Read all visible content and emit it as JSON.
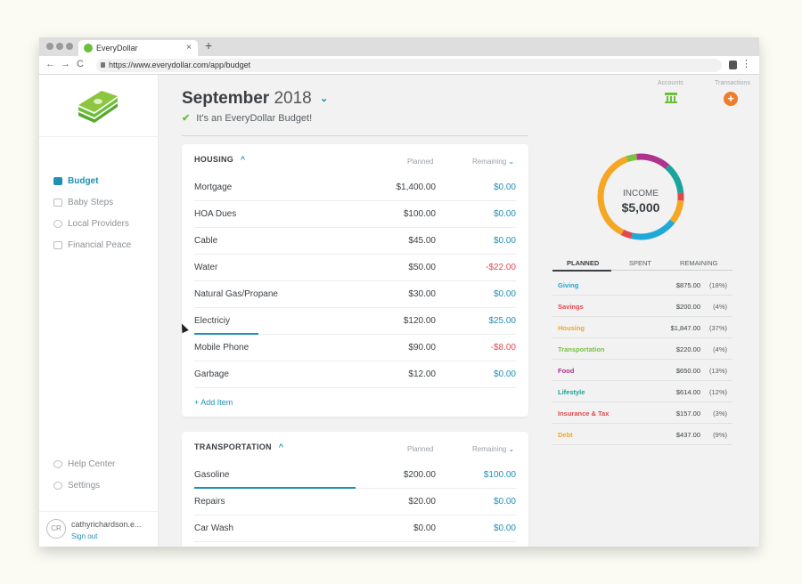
{
  "browser": {
    "tab_title": "EveryDollar",
    "tab_close": "×",
    "new_tab": "+",
    "back": "←",
    "forward": "→",
    "reload": "C",
    "url": "https://www.everydollar.com/app/budget",
    "menu": "⋮"
  },
  "sidebar": {
    "items": [
      {
        "label": "Budget",
        "icon": "folder-icon",
        "active": true
      },
      {
        "label": "Baby Steps",
        "icon": "cube-icon"
      },
      {
        "label": "Local Providers",
        "icon": "people-icon"
      },
      {
        "label": "Financial Peace",
        "icon": "book-icon"
      }
    ],
    "bottom_items": [
      {
        "label": "Help Center",
        "icon": "gear-icon"
      },
      {
        "label": "Settings",
        "icon": "gear-icon"
      }
    ],
    "user": {
      "initials": "CR",
      "name": "cathyrichardson.e...",
      "sign_out": "Sign out"
    }
  },
  "header": {
    "month": "September",
    "year": "2018",
    "chevron": "⌄",
    "checkmark": "✔",
    "subtitle": "It's an EveryDollar Budget!"
  },
  "top_actions": {
    "accounts_label": "Accounts",
    "transactions_label": "Transactions",
    "plus": "+"
  },
  "groups": [
    {
      "name": "HOUSING",
      "caret": "^",
      "planned_label": "Planned",
      "remaining_label": "Remaining",
      "remaining_chevron": "⌄",
      "items": [
        {
          "name": "Mortgage",
          "planned": "$1,400.00",
          "remaining": "$0.00",
          "negative": false,
          "progress": 0
        },
        {
          "name": "HOA Dues",
          "planned": "$100.00",
          "remaining": "$0.00",
          "negative": false,
          "progress": 0
        },
        {
          "name": "Cable",
          "planned": "$45.00",
          "remaining": "$0.00",
          "negative": false,
          "progress": 0
        },
        {
          "name": "Water",
          "planned": "$50.00",
          "remaining": "-$22.00",
          "negative": true,
          "progress": 0
        },
        {
          "name": "Natural Gas/Propane",
          "planned": "$30.00",
          "remaining": "$0.00",
          "negative": false,
          "progress": 0
        },
        {
          "name": "Electriciy",
          "planned": "$120.00",
          "remaining": "$25.00",
          "negative": false,
          "progress": 0.2
        },
        {
          "name": "Mobile Phone",
          "planned": "$90.00",
          "remaining": "-$8.00",
          "negative": true,
          "progress": 0
        },
        {
          "name": "Garbage",
          "planned": "$12.00",
          "remaining": "$0.00",
          "negative": false,
          "progress": 0
        }
      ],
      "add_item": "+ Add Item"
    },
    {
      "name": "TRANSPORTATION",
      "caret": "^",
      "planned_label": "Planned",
      "remaining_label": "Remaining",
      "remaining_chevron": "⌄",
      "items": [
        {
          "name": "Gasoline",
          "planned": "$200.00",
          "remaining": "$100.00",
          "negative": false,
          "progress": 0.5
        },
        {
          "name": "Repairs",
          "planned": "$20.00",
          "remaining": "$0.00",
          "negative": false,
          "progress": 0
        },
        {
          "name": "Car Wash",
          "planned": "$0.00",
          "remaining": "$0.00",
          "negative": false,
          "progress": 0
        }
      ]
    }
  ],
  "income": {
    "label": "INCOME",
    "value": "$5,000"
  },
  "summary_tabs": [
    "PLANNED",
    "SPENT",
    "REMAINING"
  ],
  "summary": [
    {
      "name": "Giving",
      "amount": "$875.00",
      "percent": "(18%)",
      "color": "#1fa9d8"
    },
    {
      "name": "Savings",
      "amount": "$200.00",
      "percent": "(4%)",
      "color": "#e0484e"
    },
    {
      "name": "Housing",
      "amount": "$1,847.00",
      "percent": "(37%)",
      "color": "#f5a623"
    },
    {
      "name": "Transportation",
      "amount": "$220.00",
      "percent": "(4%)",
      "color": "#7cc242"
    },
    {
      "name": "Food",
      "amount": "$650.00",
      "percent": "(13%)",
      "color": "#b0318e"
    },
    {
      "name": "Lifestyle",
      "amount": "$614.00",
      "percent": "(12%)",
      "color": "#1ba39c"
    },
    {
      "name": "Insurance & Tax",
      "amount": "$157.00",
      "percent": "(3%)",
      "color": "#e0484e"
    },
    {
      "name": "Debt",
      "amount": "$437.00",
      "percent": "(9%)",
      "color": "#f5a623"
    }
  ],
  "donut_segments": [
    {
      "color": "#7cc242",
      "share": 0.04
    },
    {
      "color": "#b0318e",
      "share": 0.13
    },
    {
      "color": "#1ba39c",
      "share": 0.12
    },
    {
      "color": "#e0484e",
      "share": 0.03
    },
    {
      "color": "#f5a623",
      "share": 0.09
    },
    {
      "color": "#1fa9d8",
      "share": 0.18
    },
    {
      "color": "#e0484e",
      "share": 0.04
    },
    {
      "color": "#f5a623",
      "share": 0.37
    }
  ]
}
